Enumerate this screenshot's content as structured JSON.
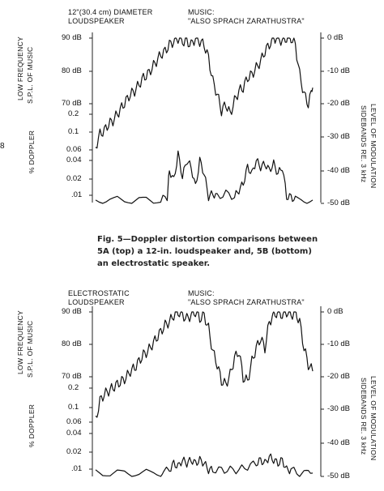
{
  "margin_mark": "8",
  "caption": "Fig. 5—Doppler distortion comparisons between 5A (top) a 12-in. loudspeaker and, 5B (bottom) an electrostatic speaker.",
  "chart_data": [
    {
      "type": "line",
      "speaker_label_1": "12\"(30.4 cm) DIAMETER",
      "speaker_label_2": "LOUDSPEAKER",
      "music_label_1": "MUSIC:",
      "music_label_2": "\"ALSO SPRACH ZARATHUSTRA\"",
      "left_axis_label_1": "LOW FREQUENCY",
      "left_axis_label_2": "S.P.L. OF MUSIC",
      "left_axis_label_3": "% DOPPLER",
      "right_axis_label_1": "LEVEL OF MODULATION",
      "right_axis_label_2": "SIDEBANDS RE. 3 kHz",
      "spl_ticks": [
        "90 dB",
        "80 dB",
        "70 dB"
      ],
      "doppler_ticks": [
        "0.2",
        "0.1",
        "0.06",
        "0.04",
        "0.02",
        ".01"
      ],
      "modulation_ticks": [
        "0 dB",
        "-10 dB",
        "-20 dB",
        "-30 dB",
        "-40 dB",
        "-50 dB"
      ],
      "ylim_modulation_db": [
        -50,
        0
      ],
      "series": [
        {
          "name": "LOW FREQUENCY S.P.L. OF MUSIC",
          "x": [
            0,
            0.02,
            0.04,
            0.06,
            0.08,
            0.1,
            0.12,
            0.14,
            0.16,
            0.18,
            0.2,
            0.22,
            0.24,
            0.26,
            0.28,
            0.3,
            0.32,
            0.34,
            0.36,
            0.38,
            0.4,
            0.42,
            0.44,
            0.46,
            0.48,
            0.5,
            0.52,
            0.54,
            0.56,
            0.58,
            0.6,
            0.62,
            0.64,
            0.66,
            0.68,
            0.7,
            0.72,
            0.74,
            0.76,
            0.78,
            0.8,
            0.82,
            0.84,
            0.86,
            0.88,
            0.9,
            0.92,
            0.94,
            0.96,
            0.98,
            1.0
          ],
          "y": [
            -33,
            -29,
            -28,
            -26,
            -25,
            -23,
            -21,
            -19,
            -17,
            -16,
            -14,
            -12,
            -11,
            -9,
            -7,
            -5,
            -4,
            -2,
            -1,
            0,
            -1,
            -1,
            -2,
            0,
            -1,
            -2,
            -6,
            -13,
            -17,
            -22,
            -20,
            -23,
            -19,
            -16,
            -15,
            -12,
            -11,
            -9,
            -7,
            -4,
            -2,
            0,
            0,
            -1,
            0,
            0,
            -2,
            -11,
            -17,
            -20,
            -15
          ]
        },
        {
          "name": "% DOPPLER",
          "x": [
            0,
            0.1,
            0.2,
            0.3,
            0.33,
            0.34,
            0.36,
            0.38,
            0.4,
            0.42,
            0.44,
            0.46,
            0.48,
            0.5,
            0.52,
            0.54,
            0.56,
            0.6,
            0.64,
            0.66,
            0.68,
            0.7,
            0.72,
            0.74,
            0.76,
            0.78,
            0.8,
            0.82,
            0.84,
            0.86,
            0.88,
            0.9,
            0.92,
            1.0
          ],
          "y": [
            -49,
            -49,
            -49,
            -49,
            -48,
            -40,
            -43,
            -35,
            -42,
            -37,
            -39,
            -45,
            -37,
            -41,
            -48,
            -47,
            -48,
            -47,
            -48,
            -46,
            -44,
            -39,
            -41,
            -37,
            -39,
            -38,
            -40,
            -38,
            -41,
            -39,
            -48,
            -48,
            -49,
            -49
          ]
        }
      ]
    },
    {
      "type": "line",
      "speaker_label_1": "ELECTROSTATIC",
      "speaker_label_2": "LOUDSPEAKER",
      "music_label_1": "MUSIC:",
      "music_label_2": "\"ALSO SPRACH ZARATHUSTRA\"",
      "left_axis_label_1": "LOW FREQUENCY",
      "left_axis_label_2": "S.P.L. OF MUSIC",
      "left_axis_label_3": "% DOPPLER",
      "right_axis_label_1": "LEVEL OF MODULATION",
      "right_axis_label_2": "SIDEBANDS RE. 3 kHz",
      "spl_ticks": [
        "90 dB",
        "80 dB",
        "70 dB"
      ],
      "doppler_ticks": [
        "0.2",
        "0.1",
        "0.06",
        "0.04",
        "0.02",
        ".01"
      ],
      "modulation_ticks": [
        "0 dB",
        "-10 dB",
        "-20 dB",
        "-30 dB",
        "-40 dB",
        "-50 dB"
      ],
      "ylim_modulation_db": [
        -50,
        0
      ],
      "series": [
        {
          "name": "LOW FREQUENCY S.P.L. OF MUSIC",
          "x": [
            0,
            0.02,
            0.04,
            0.06,
            0.08,
            0.1,
            0.12,
            0.14,
            0.16,
            0.18,
            0.2,
            0.22,
            0.24,
            0.26,
            0.28,
            0.3,
            0.32,
            0.34,
            0.36,
            0.38,
            0.4,
            0.42,
            0.44,
            0.46,
            0.48,
            0.5,
            0.52,
            0.54,
            0.56,
            0.58,
            0.6,
            0.62,
            0.64,
            0.66,
            0.68,
            0.7,
            0.72,
            0.74,
            0.76,
            0.78,
            0.8,
            0.82,
            0.84,
            0.86,
            0.88,
            0.9,
            0.92,
            0.94,
            0.96,
            0.98,
            1.0
          ],
          "y": [
            -33,
            -27,
            -25,
            -24,
            -23,
            -22,
            -21,
            -20,
            -18,
            -17,
            -15,
            -13,
            -12,
            -10,
            -8,
            -6,
            -4,
            -3,
            -1,
            0,
            -1,
            -2,
            -1,
            0,
            -2,
            -1,
            -5,
            -12,
            -16,
            -21,
            -22,
            -19,
            -14,
            -12,
            -20,
            -21,
            -15,
            -11,
            -8,
            -11,
            -3,
            -1,
            0,
            -1,
            0,
            -1,
            0,
            -3,
            -11,
            -16,
            -18
          ]
        },
        {
          "name": "% DOPPLER",
          "x": [
            0,
            0.1,
            0.2,
            0.3,
            0.34,
            0.36,
            0.38,
            0.4,
            0.42,
            0.44,
            0.46,
            0.48,
            0.5,
            0.52,
            0.54,
            0.58,
            0.62,
            0.66,
            0.7,
            0.74,
            0.76,
            0.78,
            0.8,
            0.82,
            0.84,
            0.86,
            0.88,
            0.9,
            0.94,
            1.0
          ],
          "y": [
            -49,
            -49,
            -49,
            -49,
            -48,
            -46,
            -47,
            -45,
            -46,
            -45,
            -46,
            -45,
            -46,
            -48,
            -48,
            -48,
            -48,
            -48,
            -47,
            -46,
            -45,
            -46,
            -44,
            -45,
            -46,
            -45,
            -48,
            -48,
            -49,
            -49
          ]
        }
      ]
    }
  ]
}
